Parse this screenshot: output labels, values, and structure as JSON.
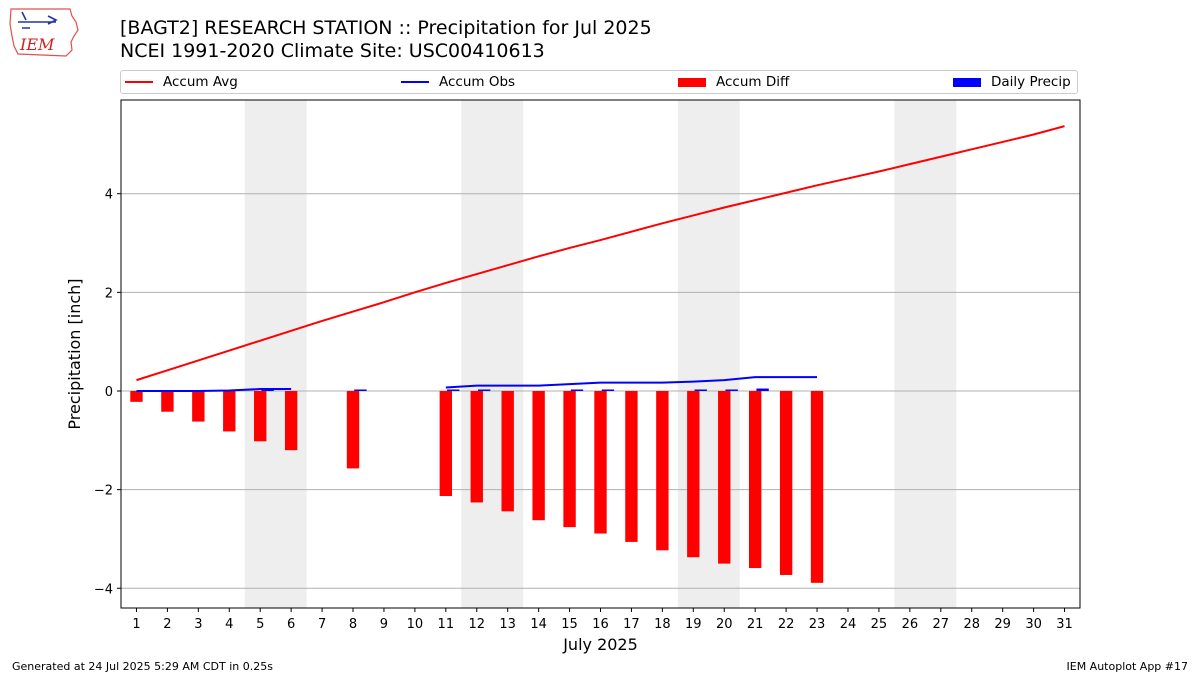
{
  "header": {
    "title": "[BAGT2] RESEARCH STATION :: Precipitation for Jul 2025",
    "subtitle": "NCEI 1991-2020 Climate Site: USC00410613"
  },
  "logo": {
    "text": "IEM",
    "icon": "iowa-state-weather-logo"
  },
  "legend": {
    "accum_avg": "Accum Avg",
    "accum_obs": "Accum Obs",
    "accum_diff": "Accum Diff",
    "daily_precip": "Daily Precip"
  },
  "colors": {
    "accum_avg": "#ff0000",
    "accum_obs": "#0000ff",
    "accum_diff": "#ff0000",
    "daily_precip": "#0000ff",
    "weekend_band": "#eeeeee",
    "grid": "#b0b0b0"
  },
  "chart_data": {
    "type": "line",
    "xlabel": "July 2025",
    "ylabel": "Precipitation [inch]",
    "xlim": [
      0.5,
      31.5
    ],
    "ylim": [
      -4.4,
      5.9
    ],
    "yticks": [
      -4,
      -2,
      0,
      2,
      4
    ],
    "ytick_labels": [
      "−4",
      "−2",
      "0",
      "2",
      "4"
    ],
    "xticks": [
      1,
      2,
      3,
      4,
      5,
      6,
      7,
      8,
      9,
      10,
      11,
      12,
      13,
      14,
      15,
      16,
      17,
      18,
      19,
      20,
      21,
      22,
      23,
      24,
      25,
      26,
      27,
      28,
      29,
      30,
      31
    ],
    "grid": "horizontal",
    "legend_position": "top",
    "weekend_shading": [
      [
        4.5,
        6.5
      ],
      [
        11.5,
        13.5
      ],
      [
        18.5,
        20.5
      ],
      [
        25.5,
        27.5
      ]
    ],
    "series": [
      {
        "name": "Accum Avg",
        "type": "line",
        "x": [
          1,
          2,
          3,
          4,
          5,
          6,
          7,
          8,
          9,
          10,
          11,
          12,
          13,
          14,
          15,
          16,
          17,
          18,
          19,
          20,
          21,
          22,
          23,
          24,
          25,
          26,
          27,
          28,
          29,
          30,
          31
        ],
        "values": [
          0.22,
          0.42,
          0.62,
          0.82,
          1.02,
          1.22,
          1.42,
          1.61,
          1.8,
          2.0,
          2.19,
          2.37,
          2.55,
          2.73,
          2.9,
          3.06,
          3.23,
          3.4,
          3.56,
          3.72,
          3.87,
          4.02,
          4.17,
          4.31,
          4.45,
          4.6,
          4.75,
          4.9,
          5.05,
          5.2,
          5.37
        ]
      },
      {
        "name": "Accum Obs",
        "type": "line",
        "segments": [
          {
            "x": [
              1,
              2,
              3,
              4,
              5,
              6
            ],
            "values": [
              0.0,
              0.0,
              0.0,
              0.01,
              0.04,
              0.04
            ]
          },
          {
            "x": [
              11,
              12,
              13,
              14,
              15,
              16,
              17,
              18,
              19,
              20,
              21,
              22,
              23
            ],
            "values": [
              0.07,
              0.11,
              0.11,
              0.11,
              0.14,
              0.17,
              0.17,
              0.17,
              0.19,
              0.22,
              0.28,
              0.28,
              0.28
            ]
          }
        ]
      },
      {
        "name": "Accum Diff",
        "type": "bar",
        "x": [
          1,
          2,
          3,
          4,
          5,
          6,
          8,
          11,
          12,
          13,
          14,
          15,
          16,
          17,
          18,
          19,
          20,
          21,
          22,
          23
        ],
        "values": [
          -0.22,
          -0.42,
          -0.62,
          -0.82,
          -1.02,
          -1.2,
          -1.57,
          -2.13,
          -2.26,
          -2.44,
          -2.62,
          -2.76,
          -2.89,
          -3.06,
          -3.23,
          -3.37,
          -3.5,
          -3.59,
          -3.73,
          -3.89
        ]
      },
      {
        "name": "Daily Precip",
        "type": "bar",
        "x": [
          5,
          8,
          11,
          12,
          15,
          16,
          19,
          20,
          21
        ],
        "values": [
          0.01,
          0.01,
          0.01,
          0.02,
          0.02,
          0.02,
          0.01,
          0.02,
          0.05
        ]
      }
    ]
  },
  "footer": {
    "generated": "Generated at 24 Jul 2025 5:29 AM CDT in 0.25s",
    "app": "IEM Autoplot App #17"
  }
}
